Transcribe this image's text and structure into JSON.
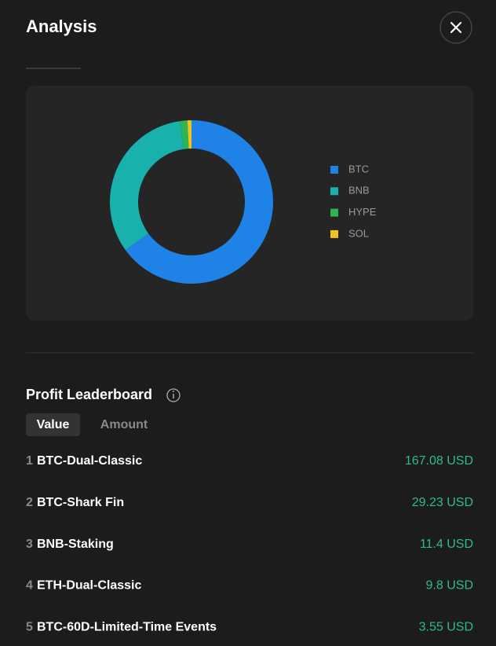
{
  "header": {
    "title": "Analysis"
  },
  "chart_data": {
    "type": "pie",
    "categories": [
      "BTC",
      "BNB",
      "HYPE",
      "SOL"
    ],
    "values": [
      65,
      32.7,
      1.5,
      0.8
    ],
    "colors": [
      "#1e82e6",
      "#19b1ac",
      "#2cb555",
      "#f0c419"
    ],
    "donut": true
  },
  "leaderboard": {
    "title": "Profit Leaderboard",
    "tabs": [
      "Value",
      "Amount"
    ],
    "rows": [
      {
        "rank": 1,
        "name": "BTC-Dual-Classic",
        "value": "167.08 USD"
      },
      {
        "rank": 2,
        "name": "BTC-Shark Fin",
        "value": "29.23 USD"
      },
      {
        "rank": 3,
        "name": "BNB-Staking",
        "value": "11.4 USD"
      },
      {
        "rank": 4,
        "name": "ETH-Dual-Classic",
        "value": "9.8 USD"
      },
      {
        "rank": 5,
        "name": "BTC-60D-Limited-Time Events",
        "value": "3.55 USD"
      }
    ]
  }
}
